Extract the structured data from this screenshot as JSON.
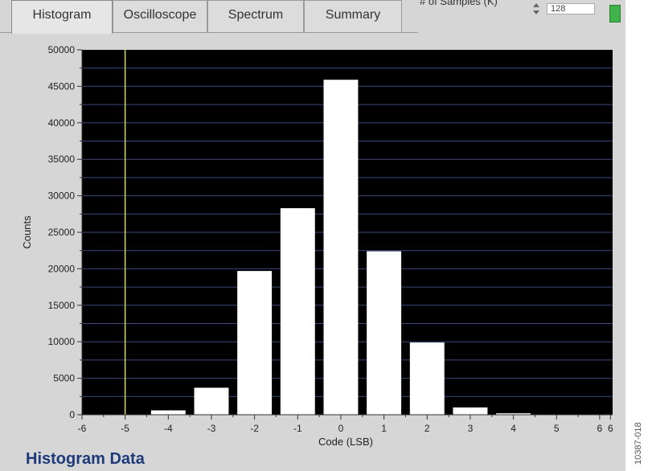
{
  "tabs": [
    {
      "label": "Histogram",
      "active": true
    },
    {
      "label": "Oscilloscope",
      "active": false
    },
    {
      "label": "Spectrum",
      "active": false
    },
    {
      "label": "Summary",
      "active": false
    }
  ],
  "samples": {
    "label": "# of Samples (K)",
    "value": "128"
  },
  "status_led_color": "#3fb44a",
  "panel_title": "Histogram Data",
  "figure_id": "10387-018",
  "chart_data": {
    "type": "bar",
    "title": "",
    "xlabel": "Code (LSB)",
    "ylabel": "Counts",
    "xlim": [
      -6,
      6.3
    ],
    "ylim": [
      0,
      50000
    ],
    "x_ticks": [
      "-6",
      "-5",
      "-4",
      "-3",
      "-2",
      "-1",
      "0",
      "1",
      "2",
      "3",
      "4",
      "5",
      "6",
      "6"
    ],
    "y_ticks": [
      "0",
      "5000",
      "10000",
      "15000",
      "20000",
      "25000",
      "30000",
      "35000",
      "40000",
      "45000",
      "50000"
    ],
    "x": [
      -4,
      -3,
      -2,
      -1,
      0,
      1,
      2,
      3,
      4
    ],
    "values": [
      600,
      3700,
      19700,
      28300,
      45900,
      22400,
      9900,
      1000,
      200
    ],
    "marker_line_x": -5,
    "plot_background": "#000000",
    "bar_color": "#ffffff",
    "grid": true,
    "grid_color": "#3a4a7a",
    "marker_color": "#d8d84a"
  }
}
